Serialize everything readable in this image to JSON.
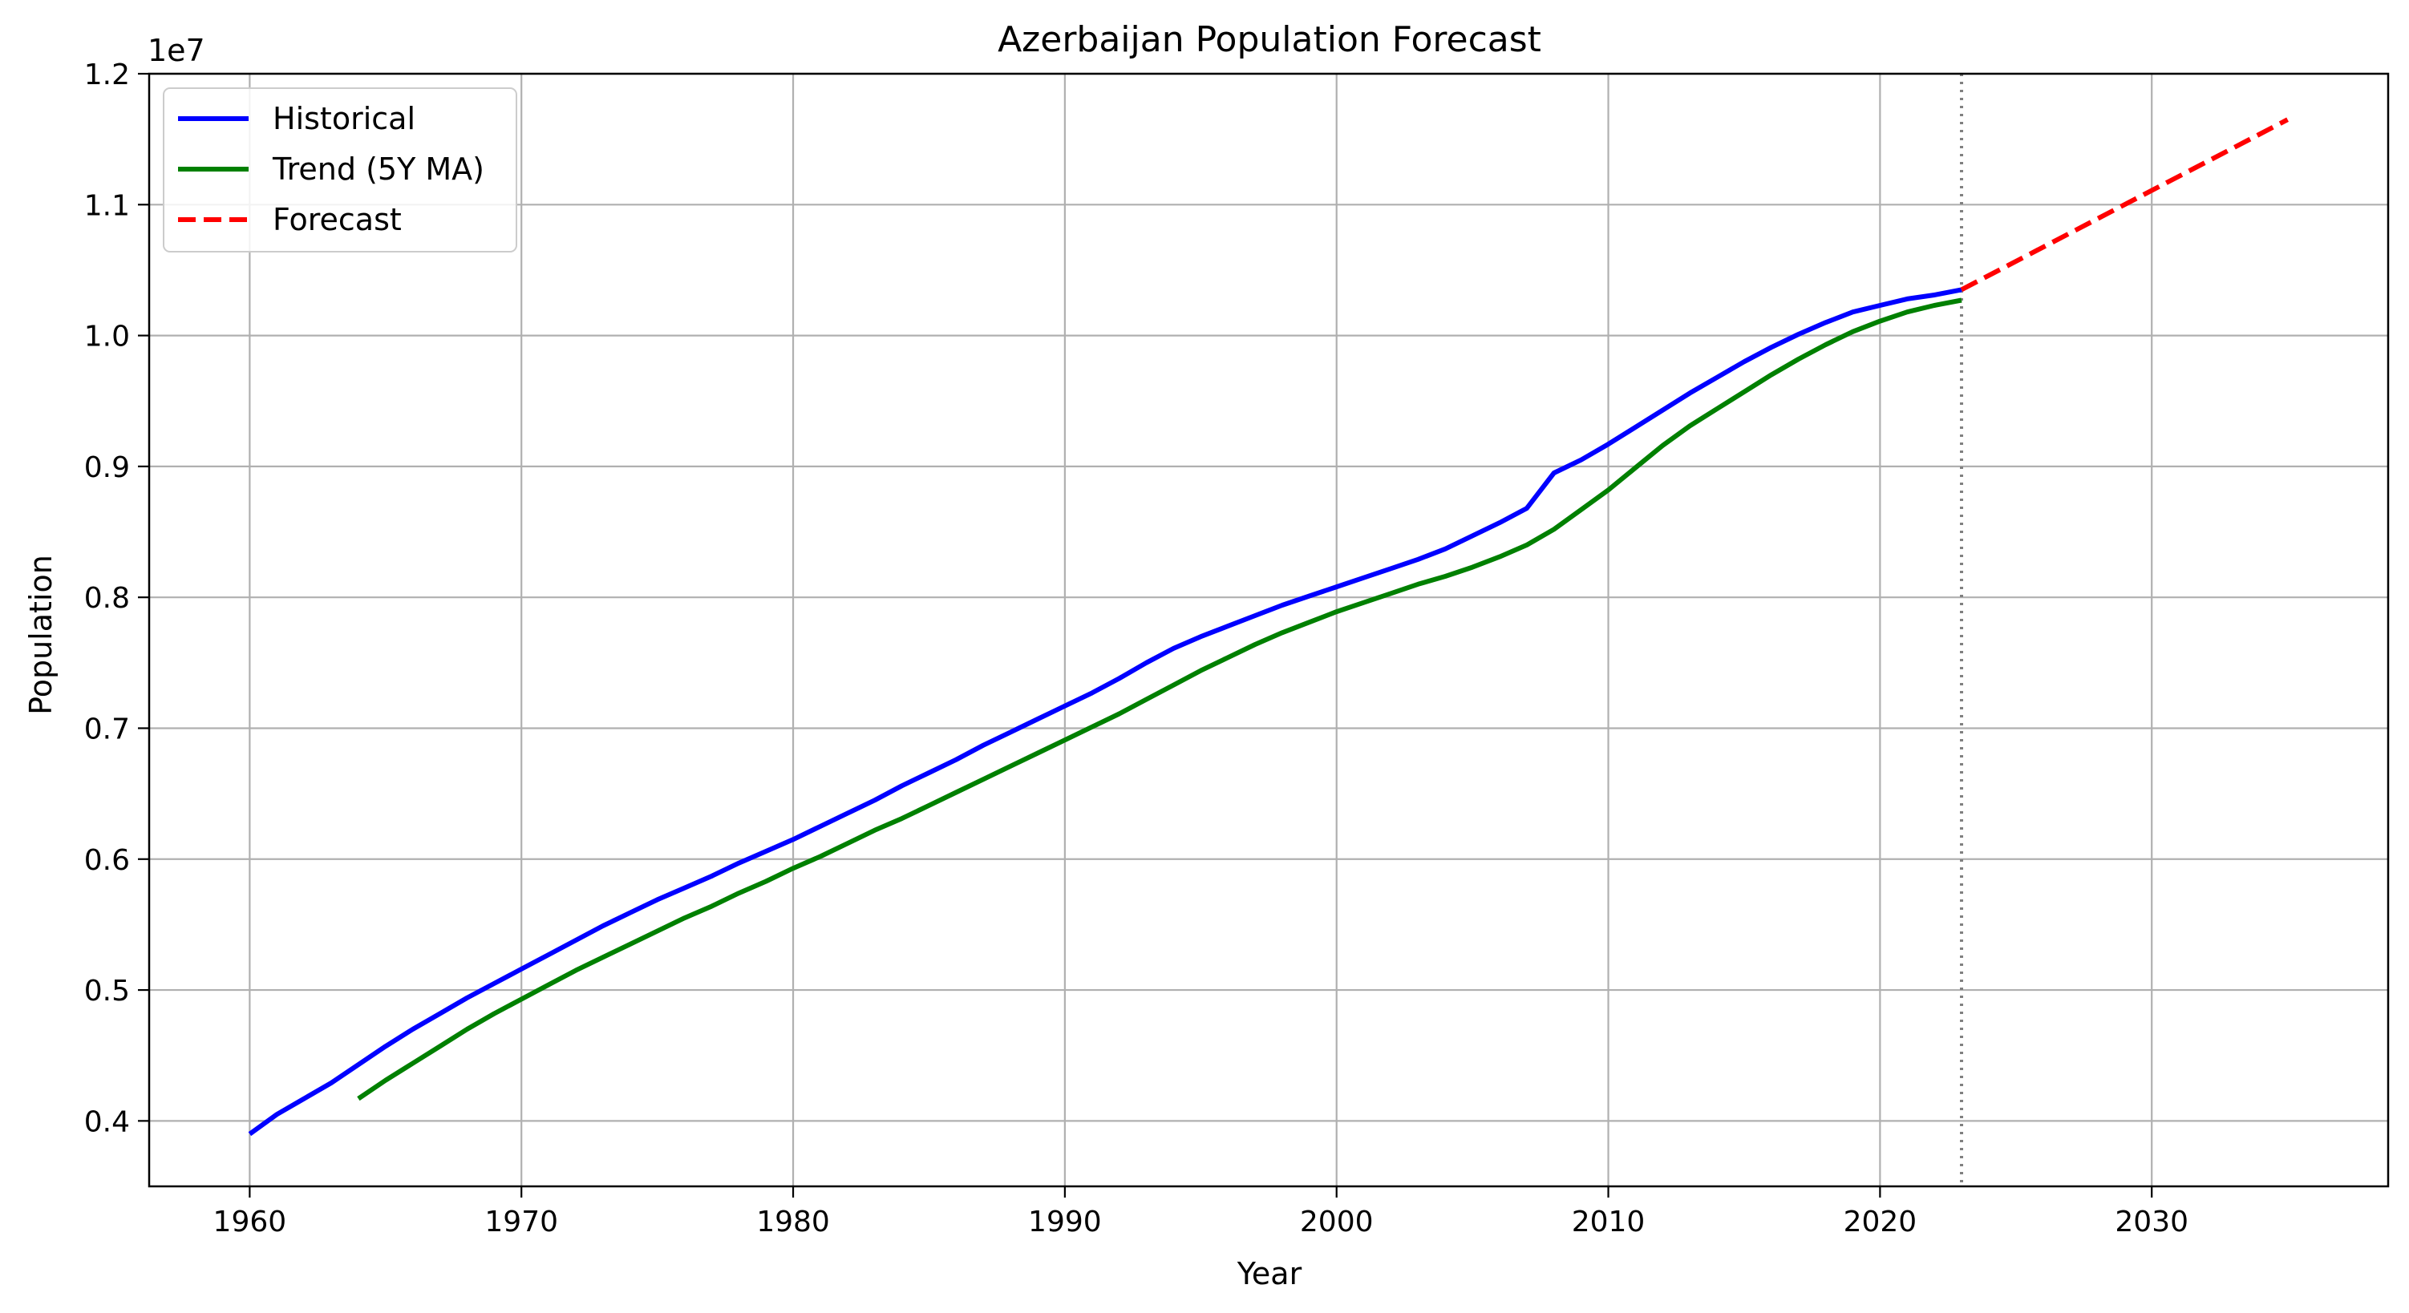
{
  "chart_data": {
    "type": "line",
    "title": "Azerbaijan Population Forecast",
    "xlabel": "Year",
    "ylabel": "Population",
    "y_offset_label": "1e7",
    "xlim": [
      1956.3,
      2038.7
    ],
    "ylim": [
      0.35,
      1.2
    ],
    "y_scale_multiplier": 10000000,
    "x_ticks": [
      1960,
      1970,
      1980,
      1990,
      2000,
      2010,
      2020,
      2030
    ],
    "x_tick_labels": [
      "1960",
      "1970",
      "1980",
      "1990",
      "2000",
      "2010",
      "2020",
      "2030"
    ],
    "y_ticks": [
      0.4,
      0.5,
      0.6,
      0.7,
      0.8,
      0.9,
      1.0,
      1.1,
      1.2
    ],
    "y_tick_labels": [
      "0.4",
      "0.5",
      "0.6",
      "0.7",
      "0.8",
      "0.9",
      "1.0",
      "1.1",
      "1.2"
    ],
    "grid": true,
    "legend_position": "top-left",
    "forecast_start_marker": 2023,
    "series": [
      {
        "name": "Historical",
        "color": "#0000ff",
        "style": "solid",
        "x": [
          1960,
          1961,
          1962,
          1963,
          1964,
          1965,
          1966,
          1967,
          1968,
          1969,
          1970,
          1971,
          1972,
          1973,
          1974,
          1975,
          1976,
          1977,
          1978,
          1979,
          1980,
          1981,
          1982,
          1983,
          1984,
          1985,
          1986,
          1987,
          1988,
          1989,
          1990,
          1991,
          1992,
          1993,
          1994,
          1995,
          1996,
          1997,
          1998,
          1999,
          2000,
          2001,
          2002,
          2003,
          2004,
          2005,
          2006,
          2007,
          2008,
          2009,
          2010,
          2011,
          2012,
          2013,
          2014,
          2015,
          2016,
          2017,
          2018,
          2019,
          2020,
          2021,
          2022,
          2023
        ],
        "y": [
          0.39,
          0.405,
          0.417,
          0.429,
          0.443,
          0.457,
          0.47,
          0.482,
          0.494,
          0.505,
          0.516,
          0.527,
          0.538,
          0.549,
          0.559,
          0.569,
          0.578,
          0.587,
          0.597,
          0.606,
          0.615,
          0.625,
          0.635,
          0.645,
          0.656,
          0.666,
          0.676,
          0.687,
          0.697,
          0.707,
          0.717,
          0.727,
          0.738,
          0.75,
          0.761,
          0.77,
          0.778,
          0.786,
          0.794,
          0.801,
          0.808,
          0.815,
          0.822,
          0.829,
          0.837,
          0.847,
          0.857,
          0.868,
          0.895,
          0.905,
          0.917,
          0.93,
          0.943,
          0.956,
          0.968,
          0.98,
          0.991,
          1.001,
          1.01,
          1.018,
          1.023,
          1.028,
          1.031,
          1.035
        ]
      },
      {
        "name": "Trend (5Y MA)",
        "color": "#008000",
        "style": "solid",
        "x": [
          1964,
          1965,
          1966,
          1967,
          1968,
          1969,
          1970,
          1971,
          1972,
          1973,
          1974,
          1975,
          1976,
          1977,
          1978,
          1979,
          1980,
          1981,
          1982,
          1983,
          1984,
          1985,
          1986,
          1987,
          1988,
          1989,
          1990,
          1991,
          1992,
          1993,
          1994,
          1995,
          1996,
          1997,
          1998,
          1999,
          2000,
          2001,
          2002,
          2003,
          2004,
          2005,
          2006,
          2007,
          2008,
          2009,
          2010,
          2011,
          2012,
          2013,
          2014,
          2015,
          2016,
          2017,
          2018,
          2019,
          2020,
          2021,
          2022,
          2023
        ],
        "y": [
          0.417,
          0.431,
          0.444,
          0.457,
          0.47,
          0.482,
          0.493,
          0.504,
          0.515,
          0.525,
          0.535,
          0.545,
          0.555,
          0.564,
          0.574,
          0.583,
          0.593,
          0.602,
          0.612,
          0.622,
          0.631,
          0.641,
          0.651,
          0.661,
          0.671,
          0.681,
          0.691,
          0.701,
          0.711,
          0.722,
          0.733,
          0.744,
          0.754,
          0.764,
          0.773,
          0.781,
          0.789,
          0.796,
          0.803,
          0.81,
          0.816,
          0.823,
          0.831,
          0.84,
          0.852,
          0.867,
          0.882,
          0.899,
          0.916,
          0.931,
          0.944,
          0.957,
          0.97,
          0.982,
          0.993,
          1.003,
          1.011,
          1.018,
          1.023,
          1.027
        ]
      },
      {
        "name": "Forecast",
        "color": "#ff0000",
        "style": "dashed",
        "x": [
          2023,
          2035
        ],
        "y": [
          1.035,
          1.165
        ]
      }
    ]
  }
}
